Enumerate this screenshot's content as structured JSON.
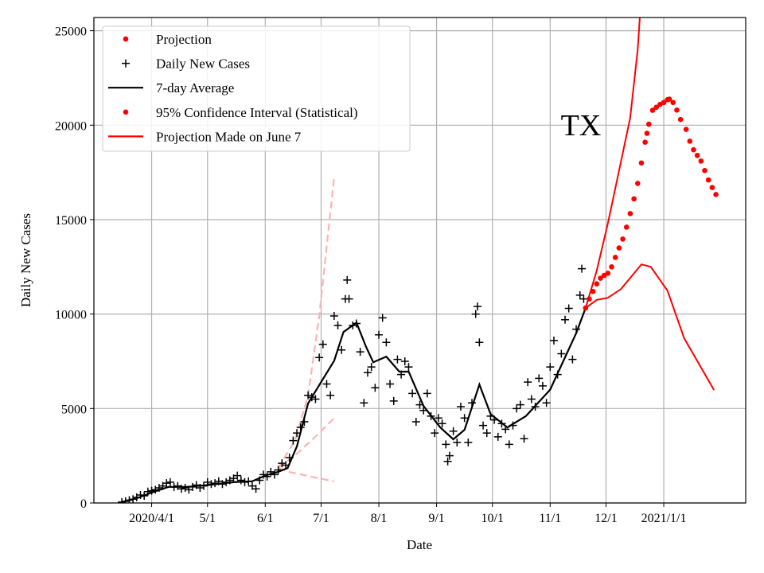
{
  "chart_data": {
    "type": "line",
    "annotation": "TX",
    "xlabel": "Date",
    "ylabel": "Daily New Cases",
    "xlim": [
      "2020-03-01",
      "2021-02-14"
    ],
    "ylim": [
      0,
      25700
    ],
    "grid": true,
    "legend_placement": "upper-left",
    "x_ticks": [
      {
        "date": "2020-04-01",
        "label": "2020/4/1"
      },
      {
        "date": "2020-05-01",
        "label": "5/1"
      },
      {
        "date": "2020-06-01",
        "label": "6/1"
      },
      {
        "date": "2020-07-01",
        "label": "7/1"
      },
      {
        "date": "2020-08-01",
        "label": "8/1"
      },
      {
        "date": "2020-09-01",
        "label": "9/1"
      },
      {
        "date": "2020-10-01",
        "label": "10/1"
      },
      {
        "date": "2020-11-01",
        "label": "11/1"
      },
      {
        "date": "2020-12-01",
        "label": "12/1"
      },
      {
        "date": "2021-01-01",
        "label": "2021/1/1"
      }
    ],
    "y_ticks": [
      0,
      5000,
      10000,
      15000,
      20000,
      25000
    ],
    "legend": [
      {
        "label": "Projection",
        "marker": "dot",
        "color": "#ff0000"
      },
      {
        "label": "Daily New Cases",
        "marker": "plus",
        "color": "#000000"
      },
      {
        "label": "7-day Average",
        "marker": "line",
        "color": "#000000"
      },
      {
        "label": "95% Confidence Interval (Statistical)",
        "marker": "dot",
        "color": "#ff0000"
      },
      {
        "label": "Projection Made on June 7",
        "marker": "line",
        "color": "#ff0000"
      }
    ],
    "series": {
      "daily_new_cases": {
        "color": "#000000",
        "points": [
          [
            "2020-03-16",
            50
          ],
          [
            "2020-03-18",
            90
          ],
          [
            "2020-03-20",
            150
          ],
          [
            "2020-03-22",
            200
          ],
          [
            "2020-03-24",
            300
          ],
          [
            "2020-03-26",
            420
          ],
          [
            "2020-03-28",
            380
          ],
          [
            "2020-03-30",
            600
          ],
          [
            "2020-04-01",
            650
          ],
          [
            "2020-04-03",
            700
          ],
          [
            "2020-04-05",
            800
          ],
          [
            "2020-04-07",
            900
          ],
          [
            "2020-04-09",
            1050
          ],
          [
            "2020-04-11",
            1100
          ],
          [
            "2020-04-13",
            850
          ],
          [
            "2020-04-15",
            900
          ],
          [
            "2020-04-17",
            750
          ],
          [
            "2020-04-19",
            800
          ],
          [
            "2020-04-21",
            700
          ],
          [
            "2020-04-23",
            850
          ],
          [
            "2020-04-25",
            950
          ],
          [
            "2020-04-27",
            800
          ],
          [
            "2020-04-29",
            900
          ],
          [
            "2020-05-01",
            1100
          ],
          [
            "2020-05-03",
            1000
          ],
          [
            "2020-05-05",
            1050
          ],
          [
            "2020-05-07",
            1150
          ],
          [
            "2020-05-09",
            1000
          ],
          [
            "2020-05-11",
            1100
          ],
          [
            "2020-05-13",
            1200
          ],
          [
            "2020-05-15",
            1300
          ],
          [
            "2020-05-17",
            1450
          ],
          [
            "2020-05-19",
            1200
          ],
          [
            "2020-05-21",
            1100
          ],
          [
            "2020-05-23",
            1150
          ],
          [
            "2020-05-25",
            900
          ],
          [
            "2020-05-27",
            750
          ],
          [
            "2020-05-29",
            1200
          ],
          [
            "2020-05-31",
            1500
          ],
          [
            "2020-06-02",
            1400
          ],
          [
            "2020-06-04",
            1650
          ],
          [
            "2020-06-06",
            1500
          ],
          [
            "2020-06-08",
            1750
          ],
          [
            "2020-06-10",
            2100
          ],
          [
            "2020-06-12",
            2000
          ],
          [
            "2020-06-14",
            2400
          ],
          [
            "2020-06-16",
            3300
          ],
          [
            "2020-06-18",
            3700
          ],
          [
            "2020-06-20",
            4000
          ],
          [
            "2020-06-22",
            4300
          ],
          [
            "2020-06-24",
            5700
          ],
          [
            "2020-06-26",
            5600
          ],
          [
            "2020-06-28",
            5500
          ],
          [
            "2020-06-30",
            7700
          ],
          [
            "2020-07-02",
            8400
          ],
          [
            "2020-07-04",
            6300
          ],
          [
            "2020-07-06",
            5700
          ],
          [
            "2020-07-08",
            9900
          ],
          [
            "2020-07-10",
            9400
          ],
          [
            "2020-07-12",
            8100
          ],
          [
            "2020-07-14",
            10800
          ],
          [
            "2020-07-15",
            11800
          ],
          [
            "2020-07-16",
            10800
          ],
          [
            "2020-07-18",
            9400
          ],
          [
            "2020-07-20",
            9500
          ],
          [
            "2020-07-22",
            8000
          ],
          [
            "2020-07-24",
            5300
          ],
          [
            "2020-07-26",
            6900
          ],
          [
            "2020-07-28",
            7200
          ],
          [
            "2020-07-30",
            6100
          ],
          [
            "2020-08-01",
            8900
          ],
          [
            "2020-08-03",
            9800
          ],
          [
            "2020-08-05",
            8500
          ],
          [
            "2020-08-07",
            6300
          ],
          [
            "2020-08-09",
            5400
          ],
          [
            "2020-08-11",
            7600
          ],
          [
            "2020-08-13",
            6800
          ],
          [
            "2020-08-15",
            7500
          ],
          [
            "2020-08-17",
            7200
          ],
          [
            "2020-08-19",
            5800
          ],
          [
            "2020-08-21",
            4300
          ],
          [
            "2020-08-23",
            5200
          ],
          [
            "2020-08-25",
            4900
          ],
          [
            "2020-08-27",
            5800
          ],
          [
            "2020-08-29",
            4600
          ],
          [
            "2020-08-31",
            3700
          ],
          [
            "2020-09-02",
            4500
          ],
          [
            "2020-09-04",
            4200
          ],
          [
            "2020-09-06",
            3100
          ],
          [
            "2020-09-07",
            2200
          ],
          [
            "2020-09-08",
            2500
          ],
          [
            "2020-09-10",
            3800
          ],
          [
            "2020-09-12",
            3200
          ],
          [
            "2020-09-14",
            5100
          ],
          [
            "2020-09-16",
            4500
          ],
          [
            "2020-09-18",
            3200
          ],
          [
            "2020-09-20",
            5300
          ],
          [
            "2020-09-22",
            10000
          ],
          [
            "2020-09-23",
            10400
          ],
          [
            "2020-09-24",
            8500
          ],
          [
            "2020-09-26",
            4100
          ],
          [
            "2020-09-28",
            3700
          ],
          [
            "2020-09-30",
            4600
          ],
          [
            "2020-10-02",
            4400
          ],
          [
            "2020-10-04",
            3500
          ],
          [
            "2020-10-06",
            4200
          ],
          [
            "2020-10-08",
            3900
          ],
          [
            "2020-10-10",
            3100
          ],
          [
            "2020-10-12",
            4100
          ],
          [
            "2020-10-14",
            5000
          ],
          [
            "2020-10-16",
            5200
          ],
          [
            "2020-10-18",
            3400
          ],
          [
            "2020-10-20",
            6400
          ],
          [
            "2020-10-22",
            5500
          ],
          [
            "2020-10-24",
            5100
          ],
          [
            "2020-10-26",
            6600
          ],
          [
            "2020-10-28",
            6200
          ],
          [
            "2020-10-30",
            5300
          ],
          [
            "2020-11-01",
            7200
          ],
          [
            "2020-11-03",
            8600
          ],
          [
            "2020-11-05",
            6800
          ],
          [
            "2020-11-07",
            7900
          ],
          [
            "2020-11-09",
            9700
          ],
          [
            "2020-11-11",
            10300
          ],
          [
            "2020-11-13",
            7600
          ],
          [
            "2020-11-15",
            9200
          ],
          [
            "2020-11-17",
            11000
          ],
          [
            "2020-11-18",
            12400
          ],
          [
            "2020-11-19",
            10800
          ]
        ]
      },
      "seven_day_average": {
        "color": "#000000",
        "points": [
          [
            "2020-03-16",
            50
          ],
          [
            "2020-03-24",
            250
          ],
          [
            "2020-04-01",
            550
          ],
          [
            "2020-04-10",
            850
          ],
          [
            "2020-04-20",
            850
          ],
          [
            "2020-05-01",
            950
          ],
          [
            "2020-05-15",
            1100
          ],
          [
            "2020-05-25",
            1150
          ],
          [
            "2020-06-01",
            1450
          ],
          [
            "2020-06-08",
            1650
          ],
          [
            "2020-06-13",
            1850
          ],
          [
            "2020-06-18",
            3000
          ],
          [
            "2020-06-24",
            5270
          ],
          [
            "2020-07-01",
            6400
          ],
          [
            "2020-07-08",
            7530
          ],
          [
            "2020-07-13",
            9050
          ],
          [
            "2020-07-20",
            9550
          ],
          [
            "2020-07-25",
            8300
          ],
          [
            "2020-07-29",
            7450
          ],
          [
            "2020-08-05",
            7750
          ],
          [
            "2020-08-12",
            6950
          ],
          [
            "2020-08-17",
            6950
          ],
          [
            "2020-08-25",
            5130
          ],
          [
            "2020-09-03",
            4000
          ],
          [
            "2020-09-10",
            3370
          ],
          [
            "2020-09-16",
            3870
          ],
          [
            "2020-09-24",
            6270
          ],
          [
            "2020-09-30",
            4710
          ],
          [
            "2020-10-09",
            4000
          ],
          [
            "2020-10-19",
            4600
          ],
          [
            "2020-11-01",
            6000
          ],
          [
            "2020-11-08",
            7500
          ],
          [
            "2020-11-15",
            9000
          ],
          [
            "2020-11-20",
            10320
          ]
        ]
      },
      "projection": {
        "color": "#ff0000",
        "points": [
          [
            "2020-11-20",
            10320
          ],
          [
            "2020-11-22",
            10800
          ],
          [
            "2020-11-24",
            11200
          ],
          [
            "2020-11-26",
            11600
          ],
          [
            "2020-11-28",
            11900
          ],
          [
            "2020-11-30",
            12050
          ],
          [
            "2020-12-02",
            12160
          ],
          [
            "2020-12-04",
            12500
          ],
          [
            "2020-12-06",
            13000
          ],
          [
            "2020-12-08",
            13500
          ],
          [
            "2020-12-10",
            13970
          ],
          [
            "2020-12-12",
            14600
          ],
          [
            "2020-12-14",
            15320
          ],
          [
            "2020-12-16",
            16100
          ],
          [
            "2020-12-18",
            16920
          ],
          [
            "2020-12-20",
            18000
          ],
          [
            "2020-12-22",
            19100
          ],
          [
            "2020-12-23",
            19570
          ],
          [
            "2020-12-24",
            20050
          ],
          [
            "2020-12-26",
            20790
          ],
          [
            "2020-12-28",
            20950
          ],
          [
            "2020-12-30",
            21100
          ],
          [
            "2021-01-01",
            21200
          ],
          [
            "2021-01-03",
            21350
          ],
          [
            "2021-01-04",
            21380
          ],
          [
            "2021-01-06",
            21200
          ],
          [
            "2021-01-08",
            20800
          ],
          [
            "2021-01-10",
            20300
          ],
          [
            "2021-01-13",
            19780
          ],
          [
            "2021-01-15",
            19150
          ],
          [
            "2021-01-17",
            18700
          ],
          [
            "2021-01-19",
            18400
          ],
          [
            "2021-01-21",
            18100
          ],
          [
            "2021-01-23",
            17600
          ],
          [
            "2021-01-25",
            17100
          ],
          [
            "2021-01-27",
            16700
          ],
          [
            "2021-01-29",
            16330
          ]
        ]
      },
      "ci_upper": {
        "color": "#ff0000",
        "points": [
          [
            "2020-11-20",
            10320
          ],
          [
            "2020-11-26",
            12300
          ],
          [
            "2020-12-02",
            14800
          ],
          [
            "2020-12-08",
            17600
          ],
          [
            "2020-12-14",
            20400
          ],
          [
            "2020-12-18",
            24000
          ],
          [
            "2020-12-20",
            27000
          ]
        ]
      },
      "ci_lower": {
        "color": "#ff0000",
        "points": [
          [
            "2020-11-20",
            10320
          ],
          [
            "2020-11-26",
            10750
          ],
          [
            "2020-12-02",
            10860
          ],
          [
            "2020-12-09",
            11320
          ],
          [
            "2020-12-20",
            12630
          ],
          [
            "2020-12-25",
            12500
          ],
          [
            "2021-01-03",
            11240
          ],
          [
            "2021-01-12",
            8710
          ],
          [
            "2021-01-28",
            5980
          ]
        ]
      },
      "june7_projection": {
        "color": "#ffb3b3",
        "style": "dashed",
        "upper": [
          [
            "2020-06-08",
            1850
          ],
          [
            "2020-06-17",
            3320
          ],
          [
            "2020-06-24",
            5680
          ],
          [
            "2020-06-30",
            9890
          ],
          [
            "2020-07-08",
            17260
          ]
        ],
        "middle": [
          [
            "2020-06-08",
            1850
          ],
          [
            "2020-06-18",
            2600
          ],
          [
            "2020-06-28",
            3520
          ],
          [
            "2020-07-08",
            4500
          ]
        ],
        "lower": [
          [
            "2020-06-08",
            1850
          ],
          [
            "2020-06-14",
            1640
          ],
          [
            "2020-07-08",
            1140
          ]
        ]
      }
    }
  }
}
